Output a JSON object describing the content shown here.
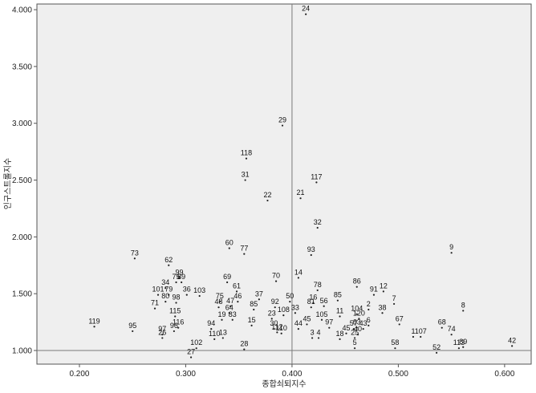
{
  "chart_data": {
    "type": "scatter",
    "xlabel": "종합쇠퇴지수",
    "ylabel": "인구스트롤지수",
    "xlim": [
      0.16,
      0.625
    ],
    "ylim": [
      0.88,
      4.05
    ],
    "xticks": [
      "0.200",
      "0.300",
      "0.400",
      "0.500",
      "0.600"
    ],
    "yticks": [
      "1.000",
      "1.500",
      "2.000",
      "2.500",
      "3.000",
      "3.500",
      "4.000"
    ],
    "reference_lines": {
      "x": 0.4,
      "y": 1.0
    },
    "grid": false,
    "colors": {
      "plot_bg": "#efefef",
      "axis": "#555555",
      "ref_line": "#7a7a7a",
      "point": "#222222"
    },
    "points": [
      {
        "label": "24",
        "x": 0.413,
        "y": 3.96
      },
      {
        "label": "29",
        "x": 0.391,
        "y": 2.98
      },
      {
        "label": "118",
        "x": 0.357,
        "y": 2.69
      },
      {
        "label": "31",
        "x": 0.356,
        "y": 2.5
      },
      {
        "label": "117",
        "x": 0.423,
        "y": 2.48
      },
      {
        "label": "22",
        "x": 0.377,
        "y": 2.32
      },
      {
        "label": "21",
        "x": 0.408,
        "y": 2.34
      },
      {
        "label": "32",
        "x": 0.424,
        "y": 2.08
      },
      {
        "label": "9",
        "x": 0.55,
        "y": 1.86
      },
      {
        "label": "73",
        "x": 0.252,
        "y": 1.81
      },
      {
        "label": "60",
        "x": 0.341,
        "y": 1.9
      },
      {
        "label": "77",
        "x": 0.355,
        "y": 1.85
      },
      {
        "label": "93",
        "x": 0.418,
        "y": 1.84
      },
      {
        "label": "62",
        "x": 0.284,
        "y": 1.75
      },
      {
        "label": "14",
        "x": 0.406,
        "y": 1.64
      },
      {
        "label": "99",
        "x": 0.294,
        "y": 1.64
      },
      {
        "label": "75",
        "x": 0.291,
        "y": 1.6
      },
      {
        "label": "89",
        "x": 0.296,
        "y": 1.6
      },
      {
        "label": "69",
        "x": 0.339,
        "y": 1.6
      },
      {
        "label": "70",
        "x": 0.385,
        "y": 1.61
      },
      {
        "label": "86",
        "x": 0.461,
        "y": 1.56
      },
      {
        "label": "34",
        "x": 0.281,
        "y": 1.55
      },
      {
        "label": "78",
        "x": 0.424,
        "y": 1.53
      },
      {
        "label": "61",
        "x": 0.348,
        "y": 1.52
      },
      {
        "label": "12",
        "x": 0.486,
        "y": 1.52
      },
      {
        "label": "91",
        "x": 0.477,
        "y": 1.49
      },
      {
        "label": "101",
        "x": 0.274,
        "y": 1.49
      },
      {
        "label": "79",
        "x": 0.284,
        "y": 1.49
      },
      {
        "label": "36",
        "x": 0.301,
        "y": 1.49
      },
      {
        "label": "103",
        "x": 0.313,
        "y": 1.48
      },
      {
        "label": "37",
        "x": 0.369,
        "y": 1.45
      },
      {
        "label": "50",
        "x": 0.398,
        "y": 1.43
      },
      {
        "label": "85",
        "x": 0.443,
        "y": 1.44
      },
      {
        "label": "80",
        "x": 0.281,
        "y": 1.43
      },
      {
        "label": "98",
        "x": 0.291,
        "y": 1.42
      },
      {
        "label": "75",
        "x": 0.332,
        "y": 1.43
      },
      {
        "label": "46",
        "x": 0.349,
        "y": 1.43
      },
      {
        "label": "16",
        "x": 0.42,
        "y": 1.42
      },
      {
        "label": "71",
        "x": 0.271,
        "y": 1.37
      },
      {
        "label": "47",
        "x": 0.342,
        "y": 1.39
      },
      {
        "label": "48",
        "x": 0.331,
        "y": 1.38
      },
      {
        "label": "92",
        "x": 0.384,
        "y": 1.38
      },
      {
        "label": "81",
        "x": 0.418,
        "y": 1.38
      },
      {
        "label": "56",
        "x": 0.43,
        "y": 1.39
      },
      {
        "label": "7",
        "x": 0.496,
        "y": 1.41
      },
      {
        "label": "2",
        "x": 0.472,
        "y": 1.36
      },
      {
        "label": "8",
        "x": 0.561,
        "y": 1.35
      },
      {
        "label": "85",
        "x": 0.364,
        "y": 1.36
      },
      {
        "label": "64",
        "x": 0.341,
        "y": 1.33
      },
      {
        "label": "33",
        "x": 0.403,
        "y": 1.33
      },
      {
        "label": "104",
        "x": 0.461,
        "y": 1.32
      },
      {
        "label": "38",
        "x": 0.485,
        "y": 1.33
      },
      {
        "label": "11",
        "x": 0.445,
        "y": 1.3
      },
      {
        "label": "108",
        "x": 0.392,
        "y": 1.31
      },
      {
        "label": "115",
        "x": 0.29,
        "y": 1.3
      },
      {
        "label": "23",
        "x": 0.381,
        "y": 1.28
      },
      {
        "label": "19",
        "x": 0.334,
        "y": 1.27
      },
      {
        "label": "83",
        "x": 0.344,
        "y": 1.27
      },
      {
        "label": "105",
        "x": 0.428,
        "y": 1.27
      },
      {
        "label": "120",
        "x": 0.463,
        "y": 1.28
      },
      {
        "label": "119",
        "x": 0.214,
        "y": 1.21
      },
      {
        "label": "15",
        "x": 0.362,
        "y": 1.22
      },
      {
        "label": "45",
        "x": 0.414,
        "y": 1.23
      },
      {
        "label": "67",
        "x": 0.501,
        "y": 1.23
      },
      {
        "label": "63",
        "x": 0.461,
        "y": 1.2
      },
      {
        "label": "6",
        "x": 0.472,
        "y": 1.22
      },
      {
        "label": "95",
        "x": 0.25,
        "y": 1.17
      },
      {
        "label": "116",
        "x": 0.293,
        "y": 1.2
      },
      {
        "label": "94",
        "x": 0.324,
        "y": 1.19
      },
      {
        "label": "30",
        "x": 0.383,
        "y": 1.19
      },
      {
        "label": "44",
        "x": 0.406,
        "y": 1.19
      },
      {
        "label": "97",
        "x": 0.435,
        "y": 1.2
      },
      {
        "label": "43",
        "x": 0.467,
        "y": 1.19
      },
      {
        "label": "57",
        "x": 0.458,
        "y": 1.19
      },
      {
        "label": "68",
        "x": 0.541,
        "y": 1.2
      },
      {
        "label": "96",
        "x": 0.289,
        "y": 1.17
      },
      {
        "label": "112",
        "x": 0.386,
        "y": 1.16
      },
      {
        "label": "110",
        "x": 0.39,
        "y": 1.15
      },
      {
        "label": "74",
        "x": 0.55,
        "y": 1.14
      },
      {
        "label": "97",
        "x": 0.278,
        "y": 1.14
      },
      {
        "label": "45",
        "x": 0.451,
        "y": 1.15
      },
      {
        "label": "40",
        "x": 0.462,
        "y": 1.14
      },
      {
        "label": "1",
        "x": 0.514,
        "y": 1.12
      },
      {
        "label": "107",
        "x": 0.521,
        "y": 1.12
      },
      {
        "label": "26",
        "x": 0.278,
        "y": 1.11
      },
      {
        "label": "110",
        "x": 0.327,
        "y": 1.1
      },
      {
        "label": "13",
        "x": 0.335,
        "y": 1.11
      },
      {
        "label": "3",
        "x": 0.419,
        "y": 1.11
      },
      {
        "label": "4",
        "x": 0.425,
        "y": 1.11
      },
      {
        "label": "18",
        "x": 0.445,
        "y": 1.1
      },
      {
        "label": "25",
        "x": 0.459,
        "y": 1.11
      },
      {
        "label": "42",
        "x": 0.607,
        "y": 1.04
      },
      {
        "label": "102",
        "x": 0.31,
        "y": 1.02
      },
      {
        "label": "28",
        "x": 0.355,
        "y": 1.01
      },
      {
        "label": "5",
        "x": 0.459,
        "y": 1.02
      },
      {
        "label": "58",
        "x": 0.497,
        "y": 1.02
      },
      {
        "label": "113",
        "x": 0.557,
        "y": 1.02
      },
      {
        "label": "89",
        "x": 0.561,
        "y": 1.03
      },
      {
        "label": "52",
        "x": 0.536,
        "y": 0.98
      },
      {
        "label": "27",
        "x": 0.305,
        "y": 0.94
      }
    ]
  }
}
